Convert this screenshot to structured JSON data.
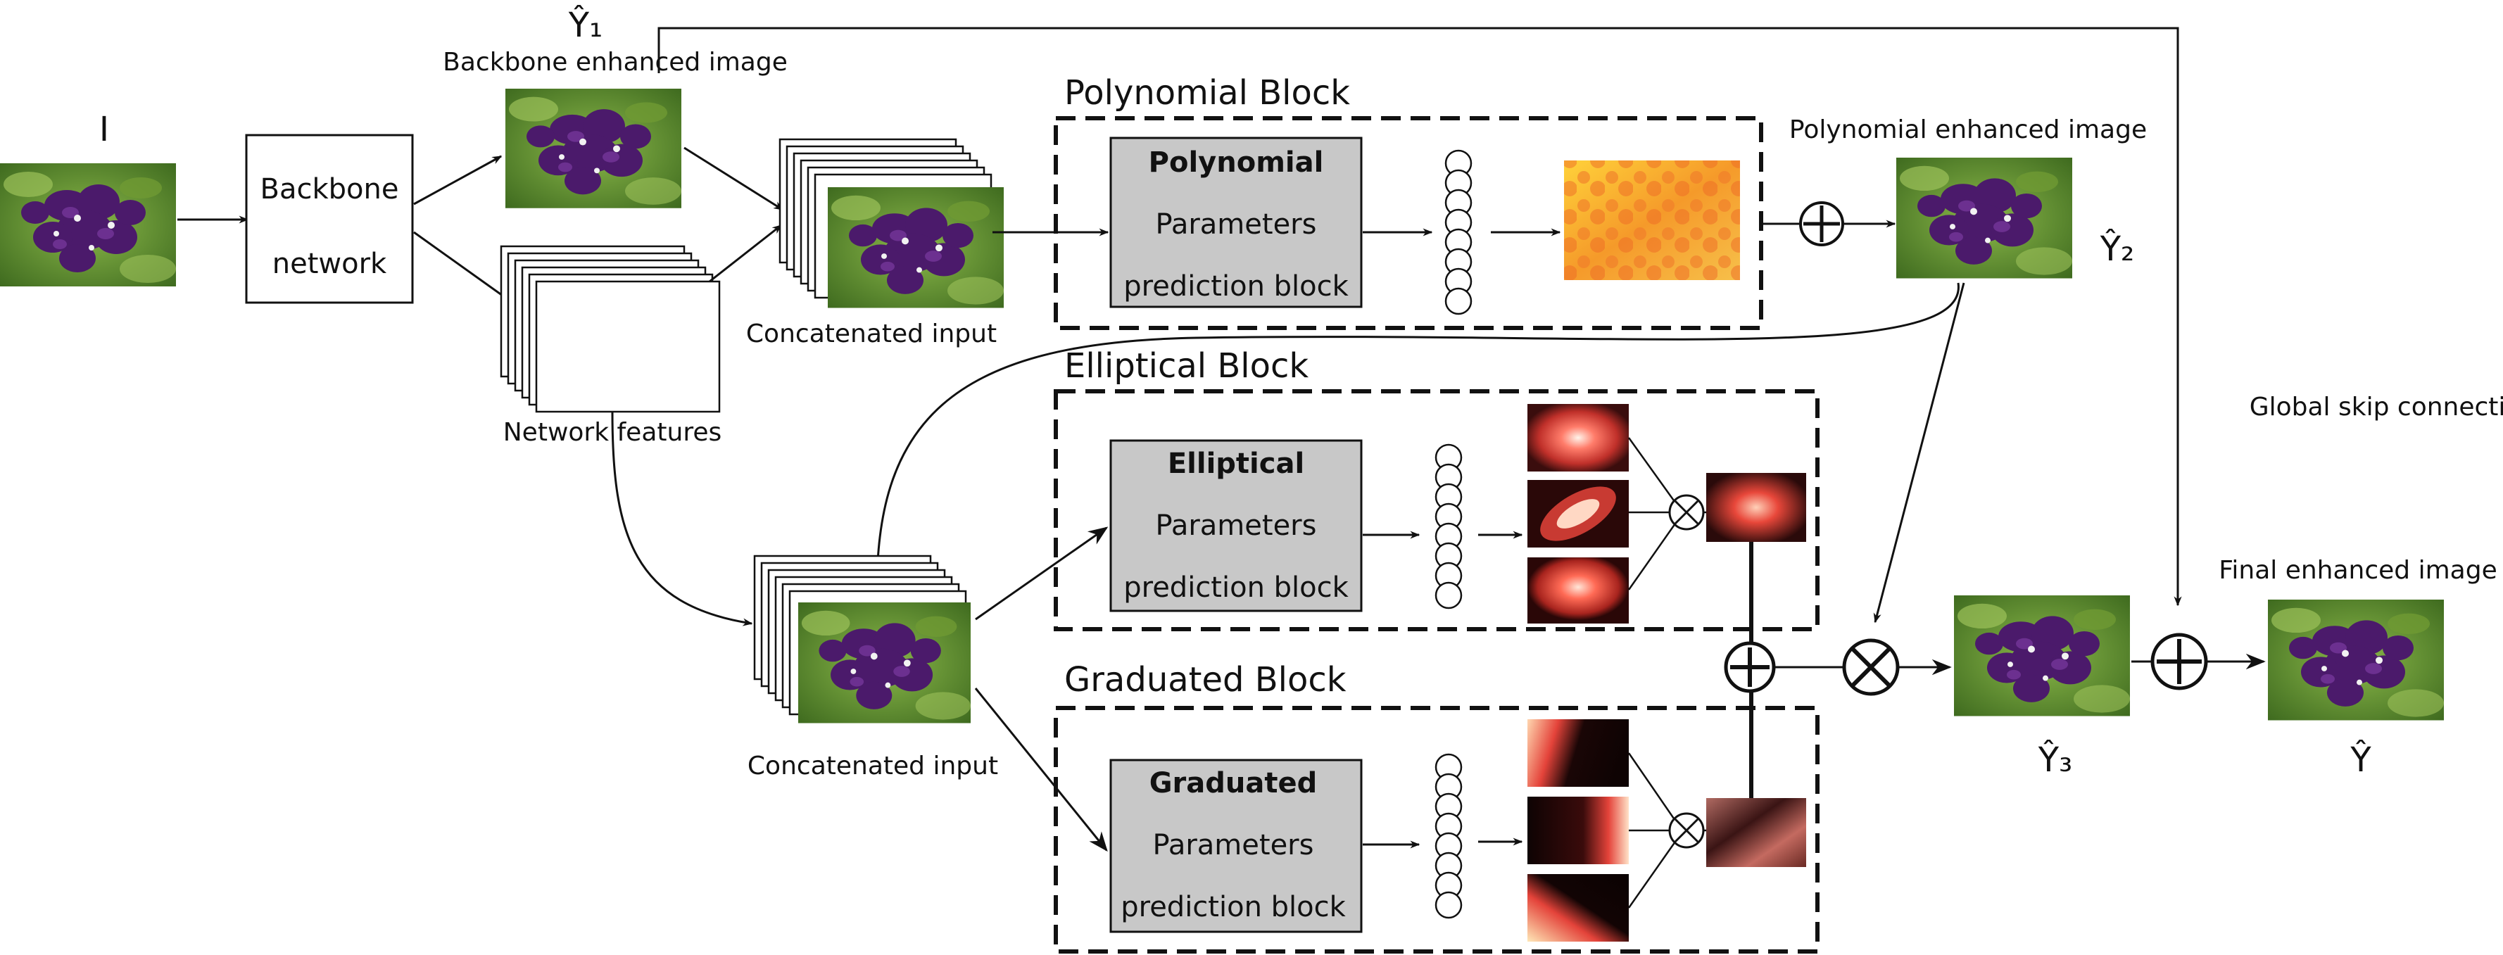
{
  "labels": {
    "input_symbol": "I",
    "y1_symbol": "Ŷ₁",
    "backbone_enhanced": "Backbone enhanced image",
    "backbone_box_line1": "Backbone",
    "backbone_box_line2": "network",
    "network_features": "Network features",
    "concatenated_input_1": "Concatenated input",
    "concatenated_input_2": "Concatenated input",
    "polynomial_block_title": "Polynomial Block",
    "polynomial_enhanced": "Polynomial enhanced image",
    "y2_symbol": "Ŷ₂",
    "global_skip": "Global skip connection",
    "elliptical_block_title": "Elliptical Block",
    "graduated_block_title": "Graduated Block",
    "final_enhanced": "Final enhanced image",
    "y3_symbol": "Ŷ₃",
    "y_symbol": "Ŷ"
  },
  "poly_box": {
    "bold": "Polynomial",
    "line2": "Parameters",
    "line3": "prediction block"
  },
  "ellip_box": {
    "bold": "Elliptical",
    "line2": "Parameters",
    "line3": "prediction block"
  },
  "grad_box": {
    "bold": "Graduated",
    "line2": "Parameters",
    "line3": "prediction block"
  },
  "colors": {
    "flower_purple": "#4b1a6b",
    "leaf_green": "#5e8a2e",
    "poly_map_orange": "#f59a2a",
    "ellipse_red": "#e8473a",
    "param_box_gray": "#c8c8c8"
  }
}
